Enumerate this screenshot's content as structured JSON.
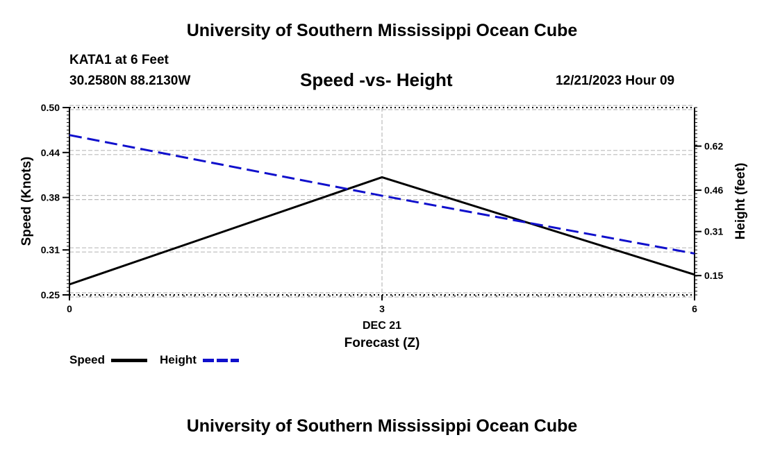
{
  "header": {
    "main_title": "University of Southern Mississippi Ocean Cube",
    "station": "KATA1 at 6 Feet",
    "coords": "30.2580N  88.2130W",
    "subtitle": "Speed -vs- Height",
    "datetime": "12/21/2023 Hour 09"
  },
  "footer": {
    "title": "University of Southern Mississippi Ocean Cube"
  },
  "legend": {
    "speed_label": "Speed",
    "height_label": "Height"
  },
  "colors": {
    "speed": "#000000",
    "height": "#1010cc",
    "grid": "#bbbbbb"
  },
  "chart_data": {
    "type": "line",
    "title": "Speed -vs- Height",
    "x": [
      0,
      3,
      6
    ],
    "x_tick_labels": [
      "0",
      "3",
      "6"
    ],
    "x_sub_label": "DEC 21",
    "xlabel": "Forecast (Z)",
    "xlim": [
      0,
      6
    ],
    "left_axis": {
      "label": "Speed (Knots)",
      "ylim": [
        0.25,
        0.5
      ],
      "ticks": [
        0.25,
        0.31,
        0.38,
        0.44,
        0.5
      ],
      "tick_labels": [
        "0.25",
        "0.31",
        "0.38",
        "0.44",
        "0.50"
      ]
    },
    "right_axis": {
      "label": "Height (feet)",
      "ylim": [
        0.08,
        0.76
      ],
      "ticks": [
        0.15,
        0.31,
        0.46,
        0.62
      ],
      "tick_labels": [
        "0.15",
        "0.31",
        "0.46",
        "0.62"
      ]
    },
    "series": [
      {
        "name": "Speed",
        "axis": "left",
        "style": "solid",
        "values": [
          0.264,
          0.407,
          0.277
        ]
      },
      {
        "name": "Height",
        "axis": "right",
        "style": "dashed",
        "values": [
          0.66,
          0.44,
          0.23
        ]
      }
    ],
    "grid": true
  }
}
